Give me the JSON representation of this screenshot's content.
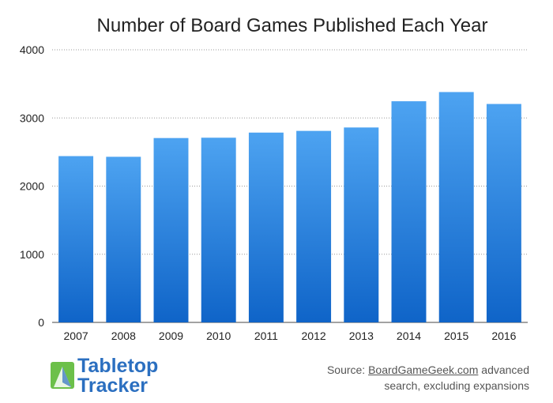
{
  "chart_data": {
    "type": "bar",
    "title": "Number of Board Games Published Each Year",
    "xlabel": "",
    "ylabel": "",
    "categories": [
      "2007",
      "2008",
      "2009",
      "2010",
      "2011",
      "2012",
      "2013",
      "2014",
      "2015",
      "2016"
    ],
    "values": [
      2440,
      2430,
      2705,
      2710,
      2785,
      2810,
      2860,
      3245,
      3380,
      3205
    ],
    "ylim": [
      0,
      4000
    ],
    "yticks": [
      0,
      1000,
      2000,
      3000,
      4000
    ],
    "grid": true,
    "bar_color_top": "#4da3f1",
    "bar_color_bottom": "#0f64c8"
  },
  "branding": {
    "logo_line1": "Tabletop",
    "logo_line2": "Tracker",
    "logo_color": "#2b6fc0"
  },
  "source": {
    "prefix": "Source: ",
    "link": "BoardGameGeek.com",
    "suffix": " advanced search, excluding expansions"
  }
}
